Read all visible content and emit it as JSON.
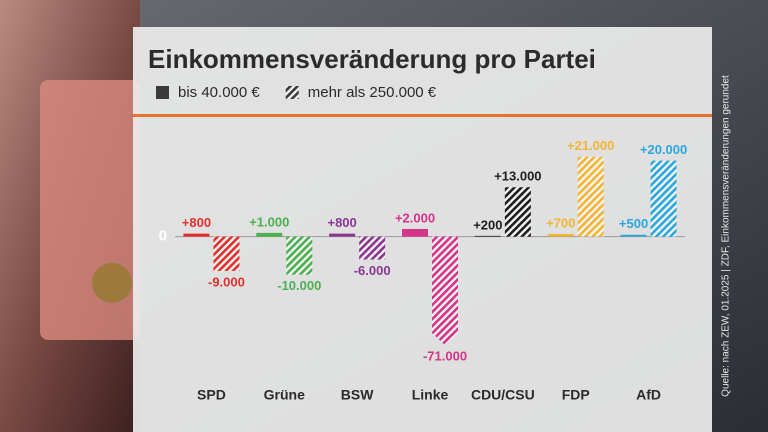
{
  "chart_data": {
    "type": "bar",
    "title": "Einkommensveränderung pro Partei",
    "source": "Quelle: nach ZEW, 01.2025 | ZDF, Einkommensveränderungen gerundet",
    "categories": [
      "SPD",
      "Grüne",
      "BSW",
      "Linke",
      "CDU/CSU",
      "FDP",
      "AfD"
    ],
    "category_colors": [
      "#e2302c",
      "#4caf50",
      "#8b3592",
      "#d6338a",
      "#1e1e1e",
      "#f2b534",
      "#2aa7dc"
    ],
    "series": [
      {
        "name": "bis 40.000 €",
        "color": "#3a3a3a",
        "pattern": "solid",
        "values": [
          800,
          1000,
          800,
          2000,
          200,
          700,
          500
        ],
        "value_labels": [
          "+800",
          "+1.000",
          "+800",
          "+2.000",
          "+200",
          "+700",
          "+500"
        ]
      },
      {
        "name": "mehr als 250.000 €",
        "color": "#3a3a3a",
        "pattern": "hatched",
        "values": [
          -9000,
          -10000,
          -6000,
          -71000,
          13000,
          21000,
          20000
        ],
        "value_labels": [
          "-9.000",
          "-10.000",
          "-6.000",
          "-71.000",
          "+13.000",
          "+21.000",
          "+20.000"
        ]
      }
    ],
    "ylim": [
      -28500,
      22000
    ],
    "yticks": [
      0
    ],
    "grid": false
  }
}
